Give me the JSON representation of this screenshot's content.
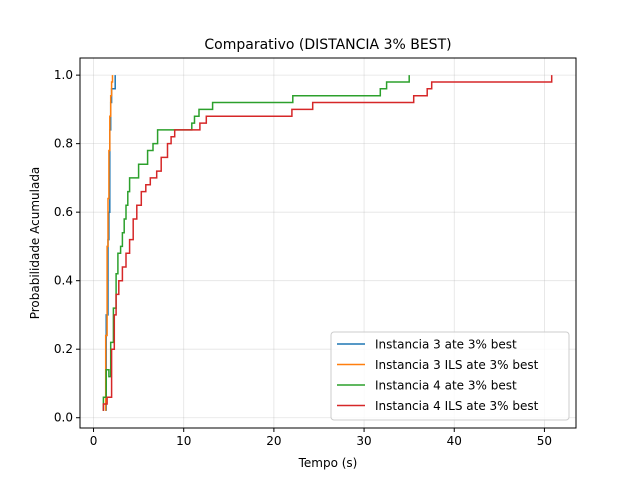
{
  "chart_data": {
    "type": "line",
    "title": "Comparativo (DISTANCIA 3% BEST)",
    "xlabel": "Tempo (s)",
    "ylabel": "Probabilidade Acumulada",
    "xlim": [
      -1.5,
      53.5
    ],
    "ylim": [
      -0.03,
      1.05
    ],
    "xticks": [
      0,
      10,
      20,
      30,
      40,
      50
    ],
    "yticks": [
      0.0,
      0.2,
      0.4,
      0.6,
      0.8,
      1.0
    ],
    "xtick_labels": [
      "0",
      "10",
      "20",
      "30",
      "40",
      "50"
    ],
    "ytick_labels": [
      "0.0",
      "0.2",
      "0.4",
      "0.6",
      "0.8",
      "1.0"
    ],
    "grid": true,
    "legend_position": "bottom-right",
    "series": [
      {
        "name": "Instancia 3 ate 3% best",
        "color": "#1f77b4",
        "points": [
          [
            1.4,
            0.02
          ],
          [
            1.4,
            0.3
          ],
          [
            1.6,
            0.3
          ],
          [
            1.6,
            0.52
          ],
          [
            1.7,
            0.52
          ],
          [
            1.7,
            0.6
          ],
          [
            1.8,
            0.6
          ],
          [
            1.8,
            0.84
          ],
          [
            1.9,
            0.84
          ],
          [
            1.9,
            0.92
          ],
          [
            2.0,
            0.92
          ],
          [
            2.0,
            0.96
          ],
          [
            2.4,
            0.96
          ],
          [
            2.4,
            1.0
          ]
        ]
      },
      {
        "name": "Instancia 3 ILS ate 3% best",
        "color": "#ff7f0e",
        "points": [
          [
            1.35,
            0.02
          ],
          [
            1.35,
            0.24
          ],
          [
            1.5,
            0.24
          ],
          [
            1.5,
            0.5
          ],
          [
            1.6,
            0.5
          ],
          [
            1.6,
            0.64
          ],
          [
            1.7,
            0.64
          ],
          [
            1.7,
            0.78
          ],
          [
            1.8,
            0.78
          ],
          [
            1.8,
            0.88
          ],
          [
            1.9,
            0.88
          ],
          [
            1.9,
            0.94
          ],
          [
            2.0,
            0.94
          ],
          [
            2.0,
            0.98
          ],
          [
            2.1,
            0.98
          ],
          [
            2.1,
            1.0
          ]
        ]
      },
      {
        "name": "Instancia 4 ate 3% best",
        "color": "#2ca02c",
        "points": [
          [
            1.1,
            0.02
          ],
          [
            1.1,
            0.06
          ],
          [
            1.4,
            0.06
          ],
          [
            1.4,
            0.14
          ],
          [
            1.7,
            0.14
          ],
          [
            1.7,
            0.12
          ],
          [
            1.9,
            0.12
          ],
          [
            1.9,
            0.22
          ],
          [
            2.2,
            0.22
          ],
          [
            2.2,
            0.32
          ],
          [
            2.5,
            0.32
          ],
          [
            2.5,
            0.42
          ],
          [
            2.7,
            0.42
          ],
          [
            2.7,
            0.48
          ],
          [
            3.0,
            0.48
          ],
          [
            3.0,
            0.5
          ],
          [
            3.2,
            0.5
          ],
          [
            3.2,
            0.54
          ],
          [
            3.4,
            0.54
          ],
          [
            3.4,
            0.58
          ],
          [
            3.6,
            0.58
          ],
          [
            3.6,
            0.62
          ],
          [
            3.8,
            0.62
          ],
          [
            3.8,
            0.66
          ],
          [
            4.0,
            0.66
          ],
          [
            4.0,
            0.7
          ],
          [
            5.0,
            0.7
          ],
          [
            5.0,
            0.74
          ],
          [
            6.0,
            0.74
          ],
          [
            6.0,
            0.78
          ],
          [
            6.6,
            0.78
          ],
          [
            6.6,
            0.8
          ],
          [
            7.1,
            0.8
          ],
          [
            7.1,
            0.84
          ],
          [
            10.9,
            0.84
          ],
          [
            10.9,
            0.86
          ],
          [
            11.2,
            0.86
          ],
          [
            11.2,
            0.88
          ],
          [
            11.7,
            0.88
          ],
          [
            11.7,
            0.9
          ],
          [
            13.2,
            0.9
          ],
          [
            13.2,
            0.92
          ],
          [
            22.1,
            0.92
          ],
          [
            22.1,
            0.94
          ],
          [
            31.8,
            0.94
          ],
          [
            31.8,
            0.96
          ],
          [
            32.5,
            0.96
          ],
          [
            32.5,
            0.98
          ],
          [
            35.0,
            0.98
          ],
          [
            35.0,
            1.0
          ]
        ]
      },
      {
        "name": "Instancia 4 ILS ate 3% best",
        "color": "#d62728",
        "points": [
          [
            1.1,
            0.02
          ],
          [
            1.1,
            0.04
          ],
          [
            1.5,
            0.04
          ],
          [
            1.5,
            0.06
          ],
          [
            2.0,
            0.06
          ],
          [
            2.0,
            0.2
          ],
          [
            2.3,
            0.2
          ],
          [
            2.3,
            0.3
          ],
          [
            2.5,
            0.3
          ],
          [
            2.5,
            0.36
          ],
          [
            2.8,
            0.36
          ],
          [
            2.8,
            0.4
          ],
          [
            3.2,
            0.4
          ],
          [
            3.2,
            0.44
          ],
          [
            3.6,
            0.44
          ],
          [
            3.6,
            0.48
          ],
          [
            4.0,
            0.48
          ],
          [
            4.0,
            0.52
          ],
          [
            4.4,
            0.52
          ],
          [
            4.4,
            0.58
          ],
          [
            4.8,
            0.58
          ],
          [
            4.8,
            0.62
          ],
          [
            5.3,
            0.62
          ],
          [
            5.3,
            0.66
          ],
          [
            5.8,
            0.66
          ],
          [
            5.8,
            0.68
          ],
          [
            6.3,
            0.68
          ],
          [
            6.3,
            0.7
          ],
          [
            7.0,
            0.7
          ],
          [
            7.0,
            0.72
          ],
          [
            7.5,
            0.72
          ],
          [
            7.5,
            0.76
          ],
          [
            8.2,
            0.76
          ],
          [
            8.2,
            0.8
          ],
          [
            8.6,
            0.8
          ],
          [
            8.6,
            0.82
          ],
          [
            9.0,
            0.82
          ],
          [
            9.0,
            0.84
          ],
          [
            11.8,
            0.84
          ],
          [
            11.8,
            0.86
          ],
          [
            12.5,
            0.86
          ],
          [
            12.5,
            0.88
          ],
          [
            22.0,
            0.88
          ],
          [
            22.0,
            0.9
          ],
          [
            24.3,
            0.9
          ],
          [
            24.3,
            0.92
          ],
          [
            35.5,
            0.92
          ],
          [
            35.5,
            0.94
          ],
          [
            37.0,
            0.94
          ],
          [
            37.0,
            0.96
          ],
          [
            37.5,
            0.96
          ],
          [
            37.5,
            0.98
          ],
          [
            50.8,
            0.98
          ],
          [
            50.8,
            1.0
          ]
        ]
      }
    ]
  }
}
